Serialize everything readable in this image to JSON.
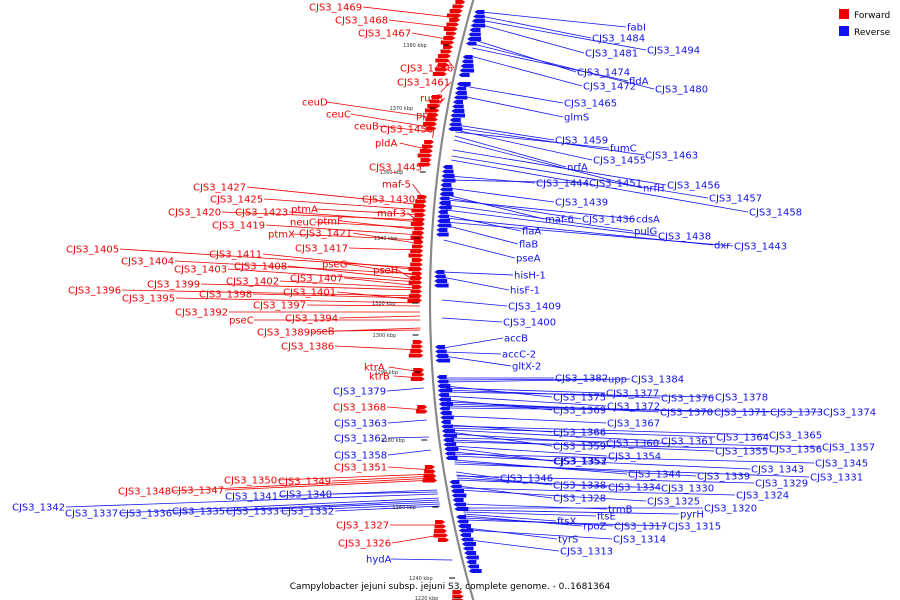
{
  "caption": "Campylobacter jejuni subsp. jejuni S3, complete genome. - 0..1681364",
  "colors": {
    "forward": "#ee0000",
    "reverse": "#1111ee",
    "backbone": "#888888",
    "tick": "#000000"
  },
  "legend": {
    "forward": "Forward",
    "reverse": "Reverse"
  },
  "ticks": [
    "1380 kbp",
    "1370 kbp",
    "1360 kbp",
    "1340 kbp",
    "1320 kbp",
    "1300 kbp",
    "1290 kbp",
    "1280 kbp",
    "1260 kbp",
    "1240 kbp",
    "1220 kbp"
  ],
  "forward_labels": [
    "CJS3_1469",
    "CJS3_1468",
    "CJS3_1467",
    "CJS3_1466",
    "CJS3_1461",
    "ruvB",
    "ceuD",
    "ppk",
    "ceuC",
    "ceuB",
    "CJS3_1450",
    "pldA",
    "CJS3_1445",
    "maf-5",
    "CJS3_1427",
    "CJS3_1425",
    "CJS3_1430",
    "ptmA",
    "CJS3_1420",
    "CJS3_1423",
    "maf-3",
    "neuC",
    "ptmF",
    "CJS3_1419",
    "ptmX",
    "CJS3_1421",
    "CJS3_1417",
    "CJS3_1405",
    "CJS3_1411",
    "CJS3_1404",
    "pseG",
    "CJS3_1408",
    "pseH",
    "CJS3_1403",
    "CJS3_1402",
    "CJS3_1407",
    "CJS3_1399",
    "CJS3_1396",
    "CJS3_1398",
    "CJS3_1401",
    "CJS3_1395",
    "CJS3_1397",
    "CJS3_1392",
    "pseC",
    "CJS3_1394",
    "CJS3_1389",
    "pseB",
    "CJS3_1386",
    "ktrA",
    "ktrB",
    "CJS3_1368",
    "CJS3_1351",
    "CJS3_1350",
    "CJS3_1349",
    "CJS3_1348",
    "CJS3_1347",
    "CJS3_1327",
    "CJS3_1326"
  ],
  "reverse_labels": [
    "fabI",
    "CJS3_1484",
    "CJS3_1481",
    "CJS3_1494",
    "CJS3_1474",
    "fldA",
    "CJS3_1472",
    "CJS3_1480",
    "CJS3_1465",
    "glmS",
    "CJS3_1459",
    "fumC",
    "CJS3_1455",
    "CJS3_1463",
    "nrfA",
    "nrfH",
    "CJS3_1444",
    "CJS3_1451",
    "CJS3_1456",
    "CJS3_1457",
    "CJS3_1439",
    "CJS3_1458",
    "maf-6",
    "CJS3_1436",
    "cdsA",
    "pulG",
    "CJS3_1438",
    "flaA",
    "dxr",
    "CJS3_1443",
    "flaB",
    "pseA",
    "hisH-1",
    "hisF-1",
    "CJS3_1409",
    "CJS3_1400",
    "accB",
    "accC-2",
    "gltX-2",
    "CJS3_1382",
    "upp",
    "CJS3_1384",
    "CJS3_1379",
    "CJS3_1375",
    "CJS3_1377",
    "CJS3_1376",
    "CJS3_1378",
    "CJS3_1369",
    "CJS3_1372",
    "CJS3_1370",
    "CJS3_1371",
    "CJS3_1373",
    "CJS3_1374",
    "CJS3_1363",
    "CJS3_1367",
    "CJS3_1366",
    "CJS3_1364",
    "CJS3_1365",
    "CJS3_1362",
    "CJS3_1359",
    "CJS3_1360",
    "CJS3_1361",
    "CJS3_1355",
    "CJS3_1356",
    "CJS3_1357",
    "CJS3_1358",
    "CJS3_1354",
    "CJS3_1353",
    "CJS3_1352",
    "CJS3_1343",
    "CJS3_1345",
    "CJS3_1344",
    "CJS3_1339",
    "CJS3_1331",
    "CJS3_1346",
    "CJS3_1338",
    "CJS3_1334",
    "CJS3_1330",
    "CJS3_1329",
    "CJS3_1341",
    "CJS3_1340",
    "CJS3_1328",
    "CJS3_1325",
    "CJS3_1324",
    "CJS3_1342",
    "CJS3_1337",
    "CJS3_1336",
    "CJS3_1335",
    "CJS3_1333",
    "CJS3_1332",
    "trmB",
    "CJS3_1320",
    "pyrH",
    "ftsE",
    "ftsX",
    "rpoZ",
    "CJS3_1317",
    "CJS3_1315",
    "tyrS",
    "CJS3_1314",
    "CJS3_1313",
    "hydA"
  ]
}
